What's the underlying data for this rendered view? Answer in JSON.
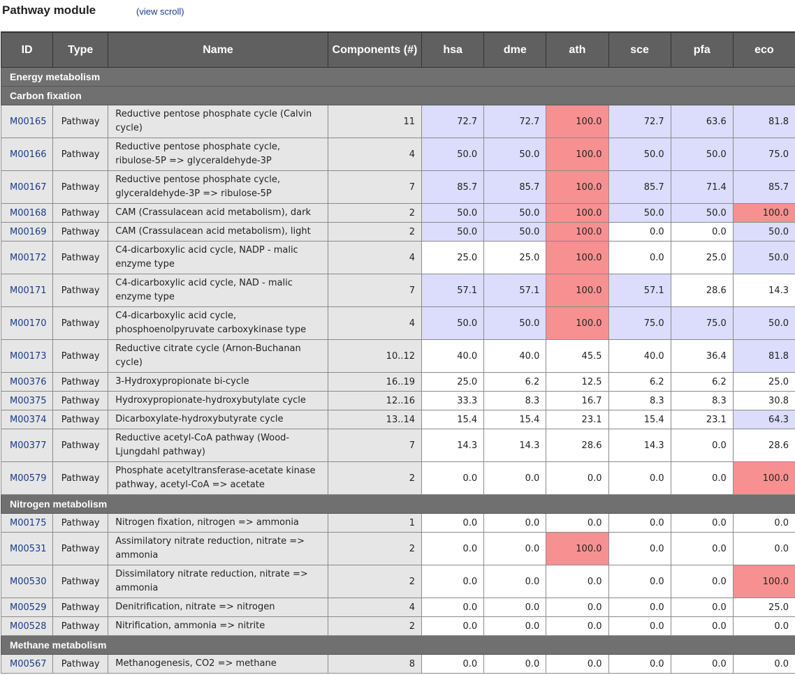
{
  "header": {
    "title": "Pathway module",
    "scroll_link": "(view scroll)"
  },
  "colors": {
    "blue_cell": "#dcdcfc",
    "red_cell": "#f79090",
    "header_bg": "#606060",
    "category_bg": "#707070"
  },
  "columns": [
    "ID",
    "Type",
    "Name",
    "Components (#)",
    "hsa",
    "dme",
    "ath",
    "sce",
    "pfa",
    "eco"
  ],
  "rows": [
    {
      "kind": "category",
      "label": "Energy metabolism"
    },
    {
      "kind": "category",
      "label": "Carbon fixation"
    },
    {
      "kind": "data",
      "id": "M00165",
      "type": "Pathway",
      "name": "Reductive pentose phosphate cycle (Calvin cycle)",
      "comp": "11",
      "vals": [
        "72.7",
        "72.7",
        "100.0",
        "72.7",
        "63.6",
        "81.8"
      ],
      "hl": [
        "b",
        "b",
        "r",
        "b",
        "b",
        "b"
      ],
      "h": 2
    },
    {
      "kind": "data",
      "id": "M00166",
      "type": "Pathway",
      "name": "Reductive pentose phosphate cycle, ribulose-5P => glyceraldehyde-3P",
      "comp": "4",
      "vals": [
        "50.0",
        "50.0",
        "100.0",
        "50.0",
        "50.0",
        "75.0"
      ],
      "hl": [
        "b",
        "b",
        "r",
        "b",
        "b",
        "b"
      ],
      "h": 2
    },
    {
      "kind": "data",
      "id": "M00167",
      "type": "Pathway",
      "name": "Reductive pentose phosphate cycle, glyceraldehyde-3P => ribulose-5P",
      "comp": "7",
      "vals": [
        "85.7",
        "85.7",
        "100.0",
        "85.7",
        "71.4",
        "85.7"
      ],
      "hl": [
        "b",
        "b",
        "r",
        "b",
        "b",
        "b"
      ],
      "h": 2
    },
    {
      "kind": "data",
      "id": "M00168",
      "type": "Pathway",
      "name": "CAM (Crassulacean acid metabolism), dark",
      "comp": "2",
      "vals": [
        "50.0",
        "50.0",
        "100.0",
        "50.0",
        "50.0",
        "100.0"
      ],
      "hl": [
        "b",
        "b",
        "r",
        "b",
        "b",
        "r"
      ],
      "h": 1
    },
    {
      "kind": "data",
      "id": "M00169",
      "type": "Pathway",
      "name": "CAM (Crassulacean acid metabolism), light",
      "comp": "2",
      "vals": [
        "50.0",
        "50.0",
        "100.0",
        "0.0",
        "0.0",
        "50.0"
      ],
      "hl": [
        "b",
        "b",
        "r",
        "",
        "",
        "b"
      ],
      "h": 1
    },
    {
      "kind": "data",
      "id": "M00172",
      "type": "Pathway",
      "name": "C4-dicarboxylic acid cycle, NADP - malic enzyme type",
      "comp": "4",
      "vals": [
        "25.0",
        "25.0",
        "100.0",
        "0.0",
        "25.0",
        "50.0"
      ],
      "hl": [
        "",
        "",
        "r",
        "",
        "",
        "b"
      ],
      "h": 2
    },
    {
      "kind": "data",
      "id": "M00171",
      "type": "Pathway",
      "name": "C4-dicarboxylic acid cycle, NAD - malic enzyme type",
      "comp": "7",
      "vals": [
        "57.1",
        "57.1",
        "100.0",
        "57.1",
        "28.6",
        "14.3"
      ],
      "hl": [
        "b",
        "b",
        "r",
        "b",
        "",
        ""
      ],
      "h": 2
    },
    {
      "kind": "data",
      "id": "M00170",
      "type": "Pathway",
      "name": "C4-dicarboxylic acid cycle, phosphoenolpyruvate carboxykinase type",
      "comp": "4",
      "vals": [
        "50.0",
        "50.0",
        "100.0",
        "75.0",
        "75.0",
        "50.0"
      ],
      "hl": [
        "b",
        "b",
        "r",
        "b",
        "b",
        "b"
      ],
      "h": 2
    },
    {
      "kind": "data",
      "id": "M00173",
      "type": "Pathway",
      "name": "Reductive citrate cycle (Arnon-Buchanan cycle)",
      "comp": "10..12",
      "vals": [
        "40.0",
        "40.0",
        "45.5",
        "40.0",
        "36.4",
        "81.8"
      ],
      "hl": [
        "",
        "",
        "",
        "",
        "",
        "b"
      ],
      "h": 2
    },
    {
      "kind": "data",
      "id": "M00376",
      "type": "Pathway",
      "name": "3-Hydroxypropionate bi-cycle",
      "comp": "16..19",
      "vals": [
        "25.0",
        "6.2",
        "12.5",
        "6.2",
        "6.2",
        "25.0"
      ],
      "hl": [
        "",
        "",
        "",
        "",
        "",
        ""
      ],
      "h": 1
    },
    {
      "kind": "data",
      "id": "M00375",
      "type": "Pathway",
      "name": "Hydroxypropionate-hydroxybutylate cycle",
      "comp": "12..16",
      "vals": [
        "33.3",
        "8.3",
        "16.7",
        "8.3",
        "8.3",
        "30.8"
      ],
      "hl": [
        "",
        "",
        "",
        "",
        "",
        ""
      ],
      "h": 1
    },
    {
      "kind": "data",
      "id": "M00374",
      "type": "Pathway",
      "name": "Dicarboxylate-hydroxybutyrate cycle",
      "comp": "13..14",
      "vals": [
        "15.4",
        "15.4",
        "23.1",
        "15.4",
        "23.1",
        "64.3"
      ],
      "hl": [
        "",
        "",
        "",
        "",
        "",
        "b"
      ],
      "h": 1
    },
    {
      "kind": "data",
      "id": "M00377",
      "type": "Pathway",
      "name": "Reductive acetyl-CoA pathway (Wood-Ljungdahl pathway)",
      "comp": "7",
      "vals": [
        "14.3",
        "14.3",
        "28.6",
        "14.3",
        "0.0",
        "28.6"
      ],
      "hl": [
        "",
        "",
        "",
        "",
        "",
        ""
      ],
      "h": 2
    },
    {
      "kind": "data",
      "id": "M00579",
      "type": "Pathway",
      "name": "Phosphate acetyltransferase-acetate kinase pathway, acetyl-CoA => acetate",
      "comp": "2",
      "vals": [
        "0.0",
        "0.0",
        "0.0",
        "0.0",
        "0.0",
        "100.0"
      ],
      "hl": [
        "",
        "",
        "",
        "",
        "",
        "r"
      ],
      "h": 2
    },
    {
      "kind": "category",
      "label": "Nitrogen metabolism"
    },
    {
      "kind": "data",
      "id": "M00175",
      "type": "Pathway",
      "name": "Nitrogen fixation, nitrogen => ammonia",
      "comp": "1",
      "vals": [
        "0.0",
        "0.0",
        "0.0",
        "0.0",
        "0.0",
        "0.0"
      ],
      "hl": [
        "",
        "",
        "",
        "",
        "",
        ""
      ],
      "h": 1
    },
    {
      "kind": "data",
      "id": "M00531",
      "type": "Pathway",
      "name": "Assimilatory nitrate reduction, nitrate => ammonia",
      "comp": "2",
      "vals": [
        "0.0",
        "0.0",
        "100.0",
        "0.0",
        "0.0",
        "0.0"
      ],
      "hl": [
        "",
        "",
        "r",
        "",
        "",
        ""
      ],
      "h": 2
    },
    {
      "kind": "data",
      "id": "M00530",
      "type": "Pathway",
      "name": "Dissimilatory nitrate reduction, nitrate => ammonia",
      "comp": "2",
      "vals": [
        "0.0",
        "0.0",
        "0.0",
        "0.0",
        "0.0",
        "100.0"
      ],
      "hl": [
        "",
        "",
        "",
        "",
        "",
        "r"
      ],
      "h": 2
    },
    {
      "kind": "data",
      "id": "M00529",
      "type": "Pathway",
      "name": "Denitrification, nitrate => nitrogen",
      "comp": "4",
      "vals": [
        "0.0",
        "0.0",
        "0.0",
        "0.0",
        "0.0",
        "25.0"
      ],
      "hl": [
        "",
        "",
        "",
        "",
        "",
        ""
      ],
      "h": 1
    },
    {
      "kind": "data",
      "id": "M00528",
      "type": "Pathway",
      "name": "Nitrification, ammonia => nitrite",
      "comp": "2",
      "vals": [
        "0.0",
        "0.0",
        "0.0",
        "0.0",
        "0.0",
        "0.0"
      ],
      "hl": [
        "",
        "",
        "",
        "",
        "",
        ""
      ],
      "h": 1
    },
    {
      "kind": "category",
      "label": "Methane metabolism"
    },
    {
      "kind": "data",
      "id": "M00567",
      "type": "Pathway",
      "name": "Methanogenesis, CO2 => methane",
      "comp": "8",
      "vals": [
        "0.0",
        "0.0",
        "0.0",
        "0.0",
        "0.0",
        "0.0"
      ],
      "hl": [
        "",
        "",
        "",
        "",
        "",
        ""
      ],
      "h": 1
    }
  ]
}
